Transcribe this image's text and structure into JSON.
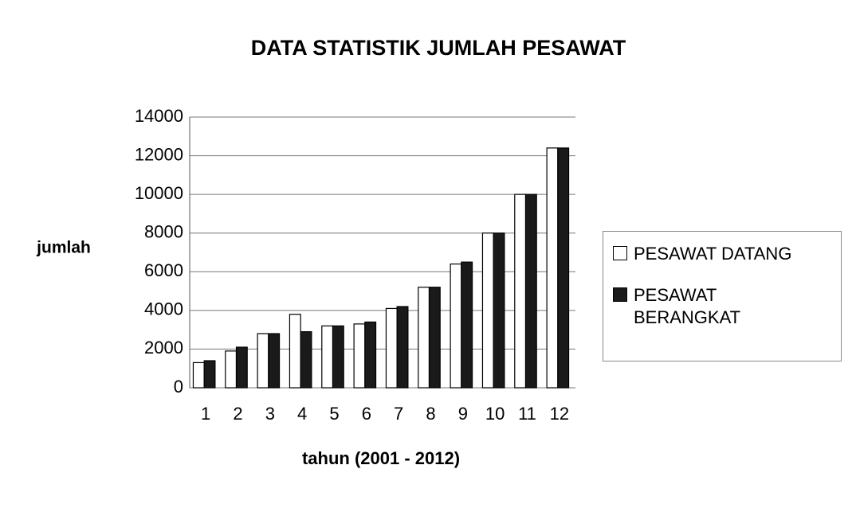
{
  "chart_data": {
    "type": "bar",
    "title": "DATA STATISTIK JUMLAH PESAWAT",
    "x_label": "tahun (2001 - 2012)",
    "y_label": "jumlah",
    "categories": [
      "1",
      "2",
      "3",
      "4",
      "5",
      "6",
      "7",
      "8",
      "9",
      "10",
      "11",
      "12"
    ],
    "series": [
      {
        "name": "PESAWAT DATANG",
        "color": "#ffffff",
        "values": [
          1300,
          1900,
          2800,
          3800,
          3200,
          3300,
          4100,
          5200,
          6400,
          8000,
          10000,
          12400
        ]
      },
      {
        "name": "PESAWAT BERANGKAT",
        "color": "#1a1a1a",
        "values": [
          1400,
          2100,
          2800,
          2900,
          3200,
          3400,
          4200,
          5200,
          6500,
          8000,
          10000,
          12400
        ]
      }
    ],
    "ylim": [
      0,
      14000
    ],
    "yticks": [
      0,
      2000,
      4000,
      6000,
      8000,
      10000,
      12000,
      14000
    ],
    "grid": true
  }
}
